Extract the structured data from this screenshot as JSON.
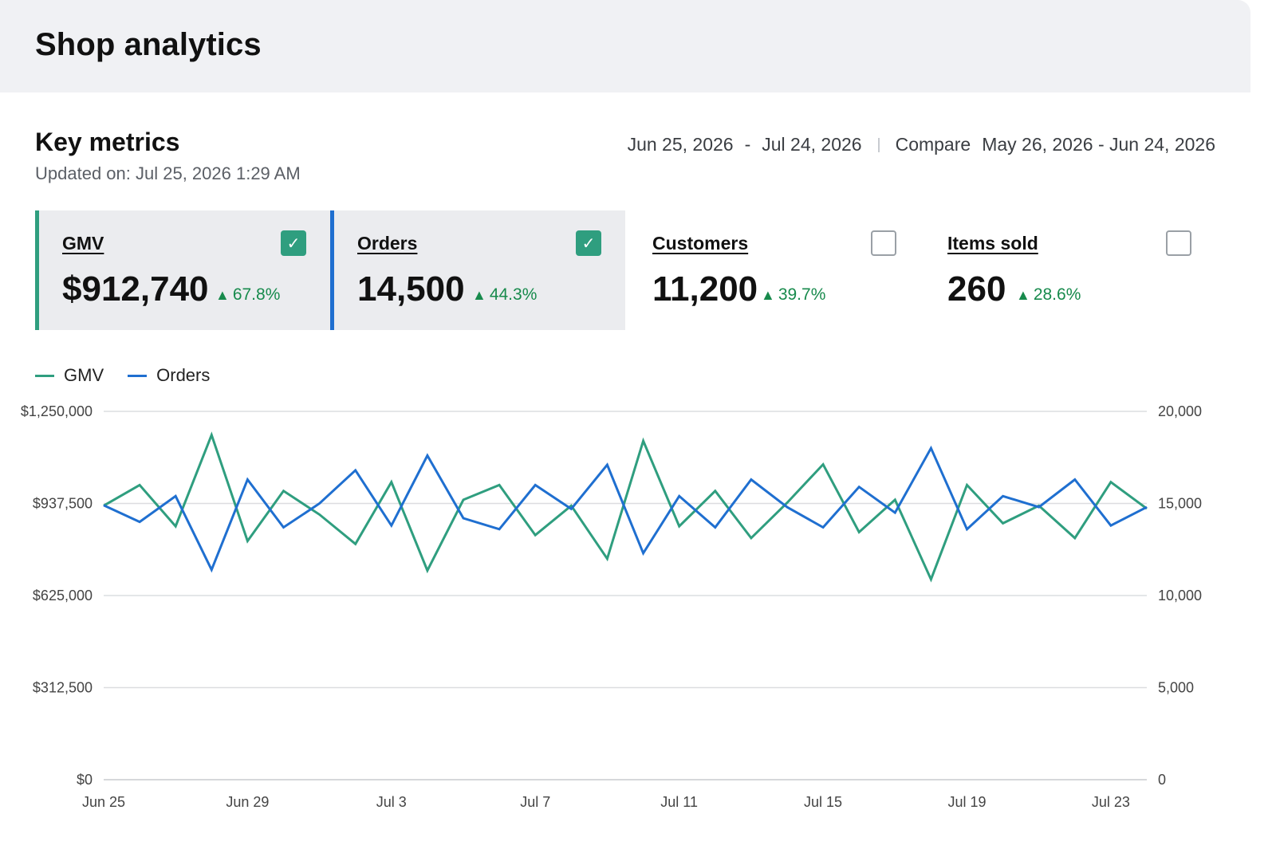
{
  "header": {
    "title": "Shop analytics"
  },
  "section": {
    "title": "Key metrics",
    "updated_label": "Updated on: ",
    "updated_value": "Jul 25, 2026 1:29 AM"
  },
  "date_range": {
    "start": "Jun 25, 2026",
    "separator": "-",
    "end": "Jul 24, 2026",
    "compare_label": "Compare",
    "compare_range": "May 26, 2026 - Jun 24, 2026"
  },
  "metrics": [
    {
      "name": "GMV",
      "value": "$912,740",
      "delta": "67.8%",
      "selected": true,
      "accent": "#2f9e7f"
    },
    {
      "name": "Orders",
      "value": "14,500",
      "delta": "44.3%",
      "selected": true,
      "accent": "#1f6fd0"
    },
    {
      "name": "Customers",
      "value": "11,200",
      "delta": "39.7%",
      "selected": false,
      "accent": ""
    },
    {
      "name": "Items sold",
      "value": "260",
      "delta": "28.6%",
      "selected": false,
      "accent": ""
    }
  ],
  "colors": {
    "gmv": "#2f9e7f",
    "orders": "#1f6fd0",
    "positive": "#178a4c",
    "grid": "#dcdde0"
  },
  "icons": {
    "checked": "check-icon",
    "delta": "triangle-up-icon"
  },
  "chart_data": {
    "type": "line",
    "x": [
      "Jun 25",
      "Jun 26",
      "Jun 27",
      "Jun 28",
      "Jun 29",
      "Jun 30",
      "Jul 1",
      "Jul 2",
      "Jul 3",
      "Jul 4",
      "Jul 5",
      "Jul 6",
      "Jul 7",
      "Jul 8",
      "Jul 9",
      "Jul 10",
      "Jul 11",
      "Jul 12",
      "Jul 13",
      "Jul 14",
      "Jul 15",
      "Jul 16",
      "Jul 17",
      "Jul 18",
      "Jul 19",
      "Jul 20",
      "Jul 21",
      "Jul 22",
      "Jul 23",
      "Jul 24"
    ],
    "x_tick_labels": [
      "Jun 25",
      "Jun 29",
      "Jul 3",
      "Jul 7",
      "Jul 11",
      "Jul 15",
      "Jul 19",
      "Jul 23"
    ],
    "series": [
      {
        "name": "GMV",
        "axis": "left",
        "color": "#2f9e7f",
        "values": [
          930000,
          1000000,
          860000,
          1170000,
          810000,
          980000,
          900000,
          800000,
          1010000,
          710000,
          950000,
          1000000,
          830000,
          930000,
          750000,
          1150000,
          860000,
          980000,
          820000,
          940000,
          1070000,
          840000,
          950000,
          680000,
          1000000,
          870000,
          930000,
          820000,
          1010000,
          920000
        ]
      },
      {
        "name": "Orders",
        "axis": "right",
        "color": "#1f6fd0",
        "values": [
          14900,
          14000,
          15400,
          11400,
          16300,
          13700,
          15000,
          16800,
          13800,
          17600,
          14200,
          13600,
          16000,
          14700,
          17100,
          12300,
          15400,
          13700,
          16300,
          14800,
          13700,
          15900,
          14500,
          18000,
          13600,
          15400,
          14800,
          16300,
          13800,
          14800
        ]
      }
    ],
    "y_left": {
      "min": 0,
      "max": 1250000,
      "ticks": [
        0,
        312500,
        625000,
        937500,
        1250000
      ],
      "tick_labels": [
        "$0",
        "$312,500",
        "$625,000",
        "$937,500",
        "$1,250,000"
      ]
    },
    "y_right": {
      "min": 0,
      "max": 20000,
      "ticks": [
        0,
        5000,
        10000,
        15000,
        20000
      ],
      "tick_labels": [
        "0",
        "5,000",
        "10,000",
        "15,000",
        "20,000"
      ]
    },
    "grid": true,
    "legend": "top-left"
  }
}
